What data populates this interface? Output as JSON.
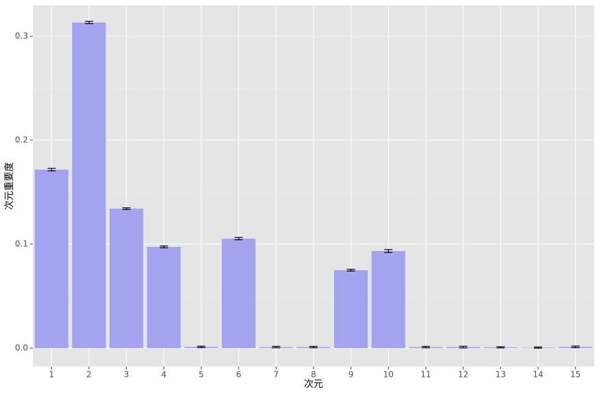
{
  "chart_data": {
    "type": "bar",
    "x_label": "次元",
    "y_label": "次元重要度",
    "categories": [
      "1",
      "2",
      "3",
      "4",
      "5",
      "6",
      "7",
      "8",
      "9",
      "10",
      "11",
      "12",
      "13",
      "14",
      "15"
    ],
    "values": [
      0.1717,
      0.3132,
      0.1342,
      0.0974,
      0.0012,
      0.1053,
      0.001,
      0.001,
      0.075,
      0.0934,
      0.001,
      0.001,
      0.0008,
      0.0005,
      0.0012
    ],
    "errors": [
      0.0012,
      0.0011,
      0.0008,
      0.0009,
      0.0007,
      0.0011,
      0.0007,
      0.0007,
      0.0009,
      0.0014,
      0.0007,
      0.0008,
      0.0006,
      0.0006,
      0.0008
    ],
    "color": "#a3a3f0",
    "error_color": "#000000",
    "ylim": [
      -0.0178,
      0.3296
    ],
    "yticks": [
      {
        "value": 0,
        "label": "0.0"
      },
      {
        "value": 0.1,
        "label": "0.1"
      },
      {
        "value": 0.2,
        "label": "0.2"
      },
      {
        "value": 0.3,
        "label": "0.3"
      }
    ],
    "grid": true
  }
}
